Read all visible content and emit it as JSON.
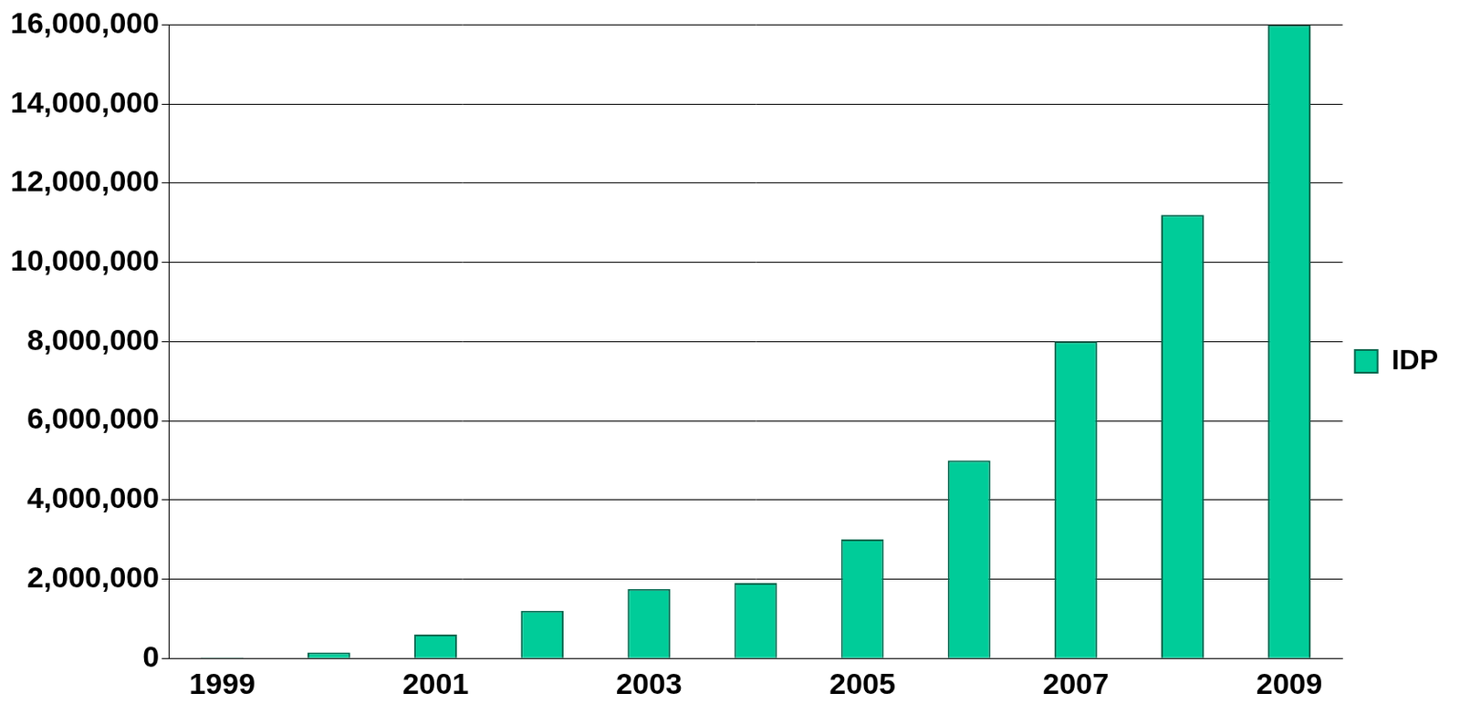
{
  "chart_data": {
    "type": "bar",
    "categories": [
      "1999",
      null,
      "2001",
      null,
      "2003",
      null,
      "2005",
      null,
      "2007",
      null,
      "2009"
    ],
    "series": [
      {
        "name": "IDP",
        "color": "#00cc99",
        "values": [
          20000,
          150000,
          600000,
          1200000,
          1750000,
          1900000,
          3000000,
          5000000,
          8000000,
          11200000,
          16000000
        ]
      }
    ],
    "ylim": [
      0,
      16000000
    ],
    "yticks": [
      0,
      {
        "value": 2000000,
        "label": "2,000,000"
      },
      {
        "value": 4000000,
        "label": "4,000,000"
      },
      {
        "value": 6000000,
        "label": "6,000,000"
      },
      {
        "value": 8000000,
        "label": "8,000,000"
      },
      {
        "value": 10000000,
        "label": "10,000,000"
      },
      {
        "value": 12000000,
        "label": "12,000,000"
      },
      {
        "value": 14000000,
        "label": "14,000,000"
      },
      {
        "value": 16000000,
        "label": "16,000,000"
      }
    ],
    "grid": true,
    "legend": "right"
  }
}
